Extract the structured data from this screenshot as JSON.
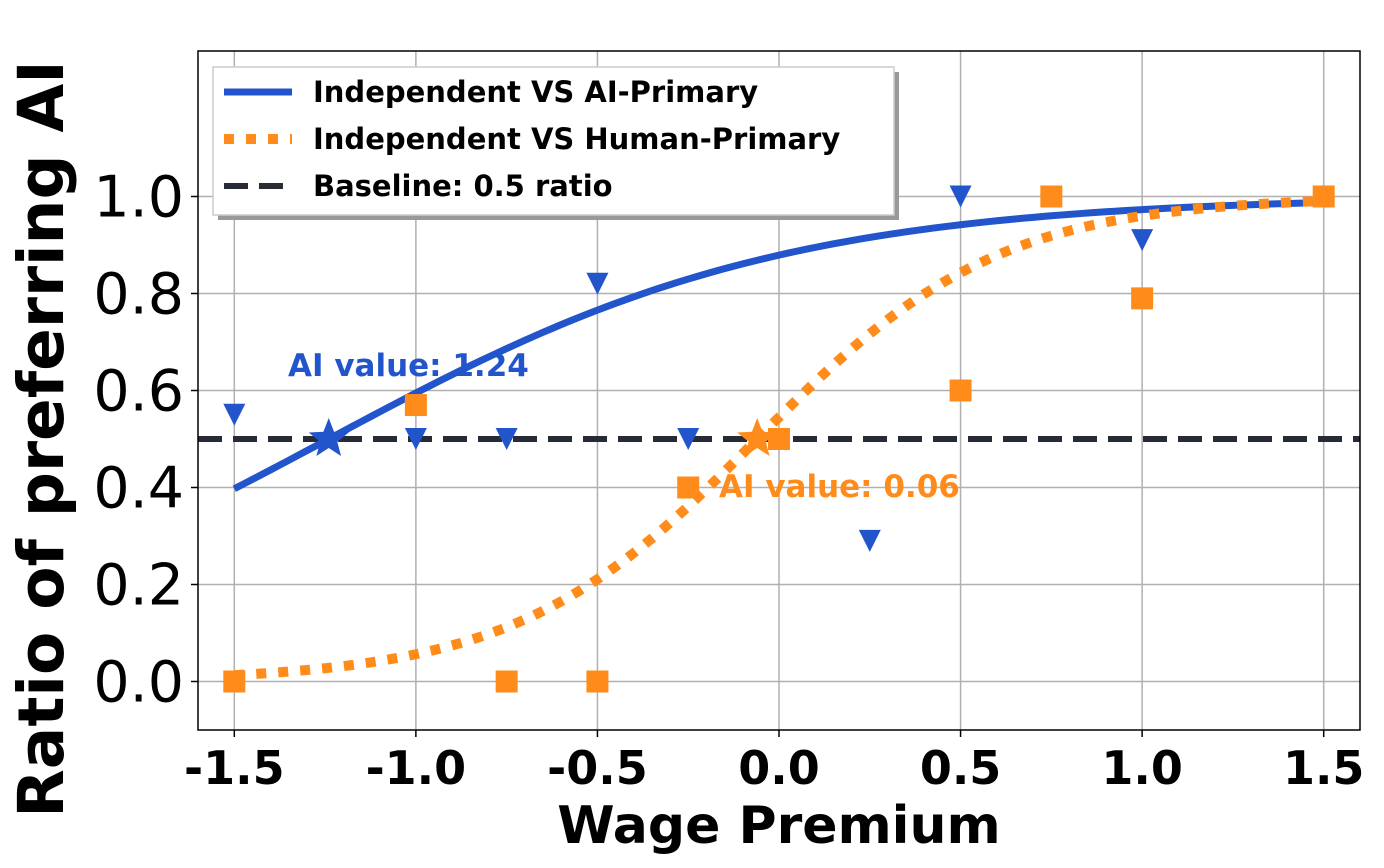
{
  "chart_data": {
    "type": "scatter",
    "xlabel": "Wage Premium",
    "ylabel": "Ratio of preferring AI",
    "xlim": [
      -1.6,
      1.6
    ],
    "ylim": [
      -0.1,
      1.3
    ],
    "x_ticks": [
      "-1.5",
      "-1.0",
      "-0.5",
      "0.0",
      "0.5",
      "1.0",
      "1.5"
    ],
    "y_ticks": [
      "0.0",
      "0.2",
      "0.4",
      "0.6",
      "0.8",
      "1.0"
    ],
    "grid": true,
    "legend_position": "top-left",
    "colors": {
      "ai_primary": "#2255cc",
      "human_primary": "#ff8c1a",
      "baseline": "#262b36"
    },
    "legend": [
      {
        "label": "Independent VS AI-Primary",
        "style": "solid",
        "color": "#2255cc"
      },
      {
        "label": "Independent VS Human-Primary",
        "style": "dotted",
        "color": "#ff8c1a"
      },
      {
        "label": "Baseline: 0.5 ratio",
        "style": "dashed",
        "color": "#262b36"
      }
    ],
    "series": [
      {
        "name": "Independent VS AI-Primary",
        "marker": "triangle-down",
        "points": [
          [
            -1.5,
            0.55
          ],
          [
            -1.0,
            0.5
          ],
          [
            -0.75,
            0.5
          ],
          [
            -0.5,
            0.82
          ],
          [
            -0.25,
            0.5
          ],
          [
            0.25,
            0.29
          ],
          [
            0.5,
            1.0
          ],
          [
            1.0,
            0.91
          ]
        ],
        "fit": {
          "midpoint": -1.24,
          "slope": 1.6,
          "x_range": [
            -1.5,
            1.5
          ]
        },
        "ai_value_point": [
          -1.24,
          0.5
        ],
        "annotation": "AI value: 1.24"
      },
      {
        "name": "Independent VS Human-Primary",
        "marker": "square",
        "points": [
          [
            -1.5,
            0.0
          ],
          [
            -1.0,
            0.57
          ],
          [
            -0.75,
            0.0
          ],
          [
            -0.5,
            0.0
          ],
          [
            -0.25,
            0.4
          ],
          [
            0.0,
            0.5
          ],
          [
            0.5,
            0.6
          ],
          [
            0.75,
            1.0
          ],
          [
            1.0,
            0.79
          ],
          [
            1.5,
            1.0
          ]
        ],
        "fit": {
          "midpoint": -0.06,
          "slope": 3.0,
          "x_range": [
            -1.5,
            1.5
          ]
        },
        "ai_value_point": [
          -0.06,
          0.5
        ],
        "annotation": "AI value: 0.06"
      }
    ],
    "baseline": 0.5
  }
}
